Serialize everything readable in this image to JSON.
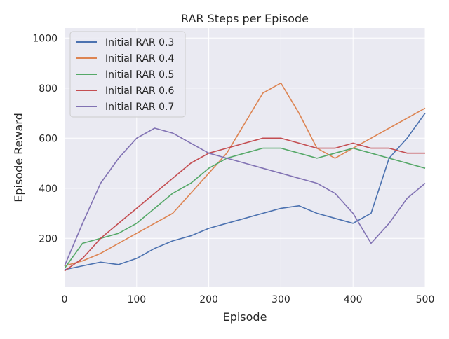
{
  "chart_data": {
    "type": "line",
    "title": "RAR Steps per Episode",
    "xlabel": "Episode",
    "ylabel": "Episode Reward",
    "xlim": [
      0,
      500
    ],
    "ylim": [
      5,
      1040
    ],
    "xticks": [
      0,
      100,
      200,
      300,
      400,
      500
    ],
    "yticks": [
      200,
      400,
      600,
      800,
      1000
    ],
    "grid": true,
    "legend_position": "top-left",
    "colors": {
      "background": "#EAEAF2",
      "grid": "#FFFFFF",
      "text": "#262626"
    },
    "series": [
      {
        "name": "Initial RAR 0.3",
        "color": "#4C72B0",
        "x": [
          0,
          25,
          50,
          75,
          100,
          125,
          150,
          175,
          200,
          225,
          250,
          275,
          300,
          325,
          350,
          375,
          400,
          425,
          450,
          475,
          500
        ],
        "y": [
          75,
          90,
          105,
          95,
          120,
          160,
          190,
          210,
          240,
          260,
          280,
          300,
          320,
          330,
          300,
          280,
          260,
          300,
          520,
          600,
          700
        ]
      },
      {
        "name": "Initial RAR 0.4",
        "color": "#DD8452",
        "x": [
          0,
          25,
          50,
          75,
          100,
          125,
          150,
          175,
          200,
          225,
          250,
          275,
          300,
          325,
          350,
          375,
          400,
          425,
          450,
          475,
          500
        ],
        "y": [
          90,
          110,
          140,
          180,
          220,
          260,
          300,
          380,
          460,
          540,
          660,
          780,
          820,
          700,
          560,
          520,
          560,
          600,
          640,
          680,
          720
        ]
      },
      {
        "name": "Initial RAR 0.5",
        "color": "#55A868",
        "x": [
          0,
          25,
          50,
          75,
          100,
          125,
          150,
          175,
          200,
          225,
          250,
          275,
          300,
          325,
          350,
          375,
          400,
          425,
          450,
          475,
          500
        ],
        "y": [
          80,
          180,
          200,
          220,
          260,
          320,
          380,
          420,
          480,
          520,
          540,
          560,
          560,
          540,
          520,
          540,
          560,
          540,
          520,
          500,
          480
        ]
      },
      {
        "name": "Initial RAR 0.6",
        "color": "#C44E52",
        "x": [
          0,
          25,
          50,
          75,
          100,
          125,
          150,
          175,
          200,
          225,
          250,
          275,
          300,
          325,
          350,
          375,
          400,
          425,
          450,
          475,
          500
        ],
        "y": [
          70,
          120,
          200,
          260,
          320,
          380,
          440,
          500,
          540,
          560,
          580,
          600,
          600,
          580,
          560,
          560,
          580,
          560,
          560,
          540,
          540
        ]
      },
      {
        "name": "Initial RAR 0.7",
        "color": "#8172B3",
        "x": [
          0,
          25,
          50,
          75,
          100,
          125,
          150,
          175,
          200,
          225,
          250,
          275,
          300,
          325,
          350,
          375,
          400,
          425,
          450,
          475,
          500
        ],
        "y": [
          90,
          260,
          420,
          520,
          600,
          640,
          620,
          580,
          540,
          520,
          500,
          480,
          460,
          440,
          420,
          380,
          300,
          180,
          260,
          360,
          420
        ]
      }
    ]
  }
}
